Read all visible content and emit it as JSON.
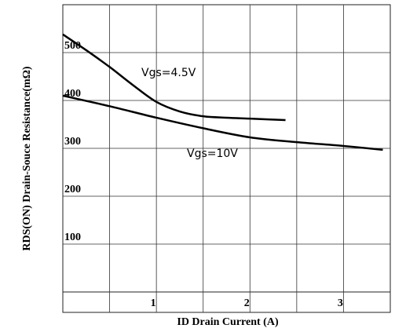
{
  "chart_data": {
    "type": "line",
    "x_label": "ID Drain Current (A)",
    "y_label": "RDS(ON) Drain-Souce Resistance(mΩ)",
    "xlim": [
      0,
      3.5
    ],
    "ylim": [
      0,
      600
    ],
    "xticks": [
      1,
      2,
      3
    ],
    "xgrid": [
      0.5,
      1,
      1.5,
      2,
      2.5,
      3
    ],
    "yticks": [
      100,
      200,
      300,
      400,
      500
    ],
    "grid": true,
    "series": [
      {
        "name": "Vgs=4.5V",
        "color": "#000000",
        "x": [
          0,
          0.25,
          0.5,
          0.75,
          1,
          1.25,
          1.5,
          1.75,
          2,
          2.38
        ],
        "values": [
          538,
          505,
          470,
          432,
          397,
          377,
          367,
          364,
          362,
          359
        ]
      },
      {
        "name": "Vgs=10V",
        "color": "#000000",
        "x": [
          0,
          0.5,
          1,
          1.5,
          2,
          2.5,
          3,
          3.42
        ],
        "values": [
          410,
          388,
          364,
          342,
          323,
          313,
          305,
          297
        ]
      }
    ]
  }
}
